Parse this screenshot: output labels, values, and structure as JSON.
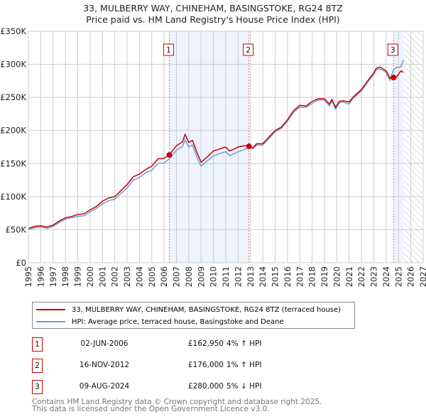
{
  "title": "33, MULBERRY WAY, CHINEHAM, BASINGSTOKE, RG24 8TZ",
  "subtitle": "Price paid vs. HM Land Registry's House Price Index (HPI)",
  "chart_data": {
    "type": "line",
    "ylim": [
      0,
      350000
    ],
    "xlim": [
      1995,
      2027
    ],
    "yticks": [
      {
        "v": 0,
        "label": "£0"
      },
      {
        "v": 50000,
        "label": "£50K"
      },
      {
        "v": 100000,
        "label": "£100K"
      },
      {
        "v": 150000,
        "label": "£150K"
      },
      {
        "v": 200000,
        "label": "£200K"
      },
      {
        "v": 250000,
        "label": "£250K"
      },
      {
        "v": 300000,
        "label": "£300K"
      },
      {
        "v": 350000,
        "label": "£350K"
      }
    ],
    "xticks": [
      "1995",
      "1996",
      "1997",
      "1998",
      "1999",
      "2000",
      "2001",
      "2002",
      "2003",
      "2004",
      "2005",
      "2006",
      "2007",
      "2008",
      "2009",
      "2010",
      "2011",
      "2012",
      "2013",
      "2014",
      "2015",
      "2016",
      "2017",
      "2018",
      "2019",
      "2020",
      "2021",
      "2022",
      "2023",
      "2024",
      "2025",
      "2026",
      "2027"
    ],
    "grid": true,
    "forecast_hatch_from": 2025.4,
    "shaded_ranges": [
      [
        2006.42,
        2012.88
      ],
      [
        2024.6,
        2025.4
      ]
    ],
    "series": [
      {
        "name": "33, MULBERRY WAY, CHINEHAM, BASINGSTOKE, RG24 8TZ (terraced house)",
        "color": "#cc0000",
        "x": [
          1995,
          1995.5,
          1996,
          1996.5,
          1997,
          1997.5,
          1998,
          1998.5,
          1999,
          1999.5,
          2000,
          2000.5,
          2001,
          2001.5,
          2002,
          2002.5,
          2003,
          2003.5,
          2004,
          2004.5,
          2005,
          2005.5,
          2006,
          2006.42,
          2007,
          2007.5,
          2007.7,
          2008,
          2008.3,
          2008.7,
          2009,
          2009.5,
          2010,
          2010.5,
          2011,
          2011.3,
          2011.7,
          2012,
          2012.5,
          2012.88,
          2013.2,
          2013.5,
          2014,
          2014.5,
          2015,
          2015.5,
          2016,
          2016.5,
          2017,
          2017.5,
          2018,
          2018.5,
          2019,
          2019.4,
          2019.6,
          2019.9,
          2020.2,
          2020.5,
          2021,
          2021.3,
          2022,
          2022.5,
          2023,
          2023.2,
          2023.5,
          2024,
          2024.3,
          2024.6,
          2024.8,
          2025.2,
          2025.4
        ],
        "y": [
          52000,
          55000,
          56000,
          54000,
          57000,
          63000,
          68000,
          70000,
          73000,
          74000,
          80000,
          85000,
          93000,
          98000,
          100000,
          109000,
          118000,
          130000,
          134000,
          141000,
          146000,
          157000,
          158000,
          162950,
          177000,
          183000,
          194000,
          182000,
          185000,
          165000,
          152000,
          160000,
          169000,
          172000,
          175000,
          169000,
          172000,
          175000,
          177000,
          176000,
          174000,
          180000,
          180000,
          190000,
          200000,
          205000,
          216000,
          230000,
          238000,
          237000,
          244000,
          248000,
          248000,
          240000,
          247000,
          235000,
          244000,
          245000,
          243000,
          250000,
          262000,
          275000,
          287000,
          294000,
          296000,
          290000,
          279000,
          280000,
          280000,
          290000,
          288000
        ]
      },
      {
        "name": "HPI: Average price, terraced house, Basingstoke and Deane",
        "color": "#6f9bd8",
        "x": [
          1995,
          1995.5,
          1996,
          1996.5,
          1997,
          1997.5,
          1998,
          1998.5,
          1999,
          1999.5,
          2000,
          2000.5,
          2001,
          2001.5,
          2002,
          2002.5,
          2003,
          2003.5,
          2004,
          2004.5,
          2005,
          2005.5,
          2006,
          2006.42,
          2007,
          2007.5,
          2007.7,
          2008,
          2008.3,
          2008.7,
          2009,
          2009.5,
          2010,
          2010.5,
          2011,
          2011.3,
          2011.7,
          2012,
          2012.5,
          2012.88,
          2013.2,
          2013.5,
          2014,
          2014.5,
          2015,
          2015.5,
          2016,
          2016.5,
          2017,
          2017.5,
          2018,
          2018.5,
          2019,
          2019.4,
          2019.6,
          2019.9,
          2020.2,
          2020.5,
          2021,
          2021.3,
          2022,
          2022.5,
          2023,
          2023.2,
          2023.5,
          2024,
          2024.3,
          2024.6,
          2024.8,
          2025.2,
          2025.4
        ],
        "y": [
          50000,
          53000,
          54000,
          52000,
          55000,
          61000,
          66000,
          68000,
          70000,
          71000,
          77000,
          82000,
          89000,
          94000,
          96000,
          105000,
          113000,
          125000,
          129000,
          136000,
          140000,
          150000,
          151000,
          157000,
          170000,
          176000,
          186000,
          175000,
          178000,
          158000,
          146000,
          154000,
          162000,
          165000,
          168000,
          162000,
          165000,
          168000,
          171000,
          174000,
          172000,
          178000,
          178000,
          188000,
          198000,
          203000,
          214000,
          228000,
          235000,
          235000,
          241000,
          246000,
          246000,
          237000,
          245000,
          232000,
          242000,
          243000,
          240000,
          248000,
          260000,
          273000,
          285000,
          292000,
          293000,
          288000,
          276000,
          292000,
          295000,
          296000,
          307000
        ]
      }
    ],
    "markers": [
      {
        "label": "1",
        "x": 2006.42,
        "y": 162950
      },
      {
        "label": "2",
        "x": 2012.88,
        "y": 176000
      },
      {
        "label": "3",
        "x": 2024.6,
        "y": 280000
      }
    ]
  },
  "legend": [
    {
      "label": "33, MULBERRY WAY, CHINEHAM, BASINGSTOKE, RG24 8TZ (terraced house)",
      "color": "#cc0000"
    },
    {
      "label": "HPI: Average price, terraced house, Basingstoke and Deane",
      "color": "#6f9bd8"
    }
  ],
  "transactions": [
    {
      "num": "1",
      "date": "02-JUN-2006",
      "price": "£162,950",
      "hpi": "4% ↑ HPI"
    },
    {
      "num": "2",
      "date": "16-NOV-2012",
      "price": "£176,000",
      "hpi": "1% ↑ HPI"
    },
    {
      "num": "3",
      "date": "09-AUG-2024",
      "price": "£280,000",
      "hpi": "5% ↓ HPI"
    }
  ],
  "footer": {
    "line1": "Contains HM Land Registry data © Crown copyright and database right 2025.",
    "line2": "This data is licensed under the Open Government Licence v3.0."
  }
}
